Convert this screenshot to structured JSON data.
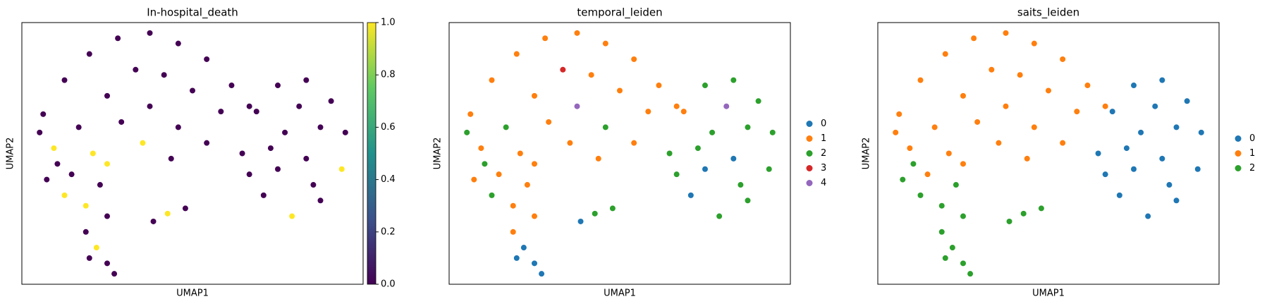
{
  "chart_data": [
    {
      "type": "scatter",
      "title": "In-hospital_death",
      "xlabel": "UMAP1",
      "ylabel": "UMAP2",
      "xlim": [
        0.6,
        10.2
      ],
      "ylim": [
        0,
        10
      ],
      "x": [
        1.2,
        1.8,
        2.5,
        3.3,
        4.2,
        5.0,
        5.8,
        6.5,
        7.0,
        1.5,
        2.2,
        3.0,
        3.8,
        4.6,
        5.4,
        6.2,
        2.6,
        3.4,
        4.2,
        5.0,
        5.8,
        3.0,
        4.0,
        1.1,
        2.0,
        4.8,
        1.3,
        1.8,
        2.4,
        3.0,
        1.6,
        2.8,
        2.4,
        2.7,
        3.0,
        3.2,
        2.5,
        4.3,
        4.7,
        5.2,
        6.8,
        7.2,
        7.8,
        8.6,
        9.3,
        9.7,
        9.6,
        9.0,
        8.2,
        7.4,
        7.0,
        8.0,
        8.6,
        7.8,
        9.0,
        8.4,
        7.6,
        8.8
      ],
      "y": [
        6.5,
        7.8,
        8.8,
        9.4,
        9.6,
        9.2,
        8.6,
        7.6,
        6.8,
        5.2,
        6.0,
        7.2,
        8.2,
        8.0,
        7.4,
        6.6,
        5.0,
        6.2,
        6.8,
        6.0,
        5.4,
        4.6,
        5.4,
        5.8,
        4.2,
        4.8,
        4.0,
        3.4,
        3.0,
        2.6,
        4.6,
        3.8,
        2.0,
        1.4,
        0.8,
        0.4,
        1.0,
        2.4,
        2.7,
        2.9,
        5.0,
        6.6,
        7.6,
        7.8,
        7.0,
        5.8,
        4.4,
        3.2,
        2.6,
        3.4,
        4.2,
        5.8,
        4.8,
        4.4,
        6.0,
        6.8,
        5.2,
        3.8
      ],
      "c": [
        0,
        0,
        0,
        0,
        0,
        0,
        0,
        0,
        0,
        1,
        0,
        0,
        0,
        0,
        0,
        0,
        1,
        0,
        0,
        0,
        0,
        1,
        1,
        0,
        0,
        0,
        0,
        1,
        1,
        0,
        0,
        0,
        0,
        1,
        0,
        0,
        0,
        0,
        1,
        0,
        0,
        0,
        0,
        0,
        0,
        0,
        1,
        0,
        1,
        0,
        0,
        0,
        0,
        0,
        0,
        0,
        0,
        0
      ],
      "colorbar": {
        "lim": [
          0,
          1
        ],
        "ticks": [
          {
            "value": 0,
            "label": "0.0"
          },
          {
            "value": 0.2,
            "label": "0.2"
          },
          {
            "value": 0.4,
            "label": "0.4"
          },
          {
            "value": 0.6,
            "label": "0.6"
          },
          {
            "value": 0.8,
            "label": "0.8"
          },
          {
            "value": 1,
            "label": "1.0"
          }
        ],
        "cmap": [
          "#440154",
          "#3b528b",
          "#21918c",
          "#5ec962",
          "#fde725"
        ]
      }
    },
    {
      "type": "scatter",
      "title": "temporal_leiden",
      "xlabel": "UMAP1",
      "ylabel": "UMAP2",
      "xlim": [
        0.6,
        10.2
      ],
      "ylim": [
        0,
        10
      ],
      "legend": "right",
      "series": [
        {
          "name": "0",
          "color": "#1f77b4",
          "x": [
            2.7,
            3.0,
            3.2,
            2.5,
            4.3,
            7.4,
            8.6,
            7.8
          ],
          "y": [
            1.4,
            0.8,
            0.4,
            1.0,
            2.4,
            3.4,
            4.8,
            4.4
          ]
        },
        {
          "name": "1",
          "color": "#ff7f0e",
          "x": [
            1.2,
            1.8,
            2.5,
            3.3,
            4.2,
            5.0,
            5.8,
            6.5,
            7.0,
            1.5,
            3.0,
            4.6,
            5.4,
            6.2,
            2.6,
            3.4,
            5.8,
            3.0,
            4.0,
            2.0,
            4.8,
            1.3,
            2.4,
            3.0,
            2.8,
            2.4,
            7.2
          ],
          "y": [
            6.5,
            7.8,
            8.8,
            9.4,
            9.6,
            9.2,
            8.6,
            7.6,
            6.8,
            5.2,
            7.2,
            8.0,
            7.4,
            6.6,
            5.0,
            6.2,
            5.4,
            4.6,
            5.4,
            4.2,
            4.8,
            4.0,
            3.0,
            2.6,
            3.8,
            2.0,
            6.6
          ]
        },
        {
          "name": "2",
          "color": "#2ca02c",
          "x": [
            2.2,
            5.0,
            1.1,
            1.8,
            1.6,
            4.7,
            5.2,
            6.8,
            7.8,
            8.6,
            9.3,
            9.7,
            9.6,
            9.0,
            8.2,
            7.0,
            8.0,
            9.0,
            7.6,
            8.8
          ],
          "y": [
            6.0,
            6.0,
            5.8,
            3.4,
            4.6,
            2.7,
            2.9,
            5.0,
            7.6,
            7.8,
            7.0,
            5.8,
            4.4,
            3.2,
            2.6,
            4.2,
            5.8,
            6.0,
            5.2,
            3.8
          ]
        },
        {
          "name": "3",
          "color": "#d62728",
          "x": [
            3.8
          ],
          "y": [
            8.2
          ]
        },
        {
          "name": "4",
          "color": "#9467bd",
          "x": [
            4.2,
            8.4
          ],
          "y": [
            6.8,
            6.8
          ]
        }
      ]
    },
    {
      "type": "scatter",
      "title": "saits_leiden",
      "xlabel": "UMAP1",
      "ylabel": "UMAP2",
      "xlim": [
        0.6,
        10.2
      ],
      "ylim": [
        0,
        10
      ],
      "legend": "right",
      "series": [
        {
          "name": "0",
          "color": "#1f77b4",
          "x": [
            6.8,
            7.2,
            7.8,
            8.6,
            9.3,
            9.7,
            9.6,
            9.0,
            8.2,
            7.4,
            7.0,
            8.0,
            8.6,
            7.8,
            9.0,
            8.4,
            7.6,
            8.8
          ],
          "y": [
            5.0,
            6.6,
            7.6,
            7.8,
            7.0,
            5.8,
            4.4,
            3.2,
            2.6,
            3.4,
            4.2,
            5.8,
            4.8,
            4.4,
            6.0,
            6.8,
            5.2,
            3.8
          ]
        },
        {
          "name": "1",
          "color": "#ff7f0e",
          "x": [
            1.2,
            1.8,
            2.5,
            3.3,
            4.2,
            5.0,
            5.8,
            6.5,
            7.0,
            1.5,
            2.2,
            3.0,
            3.8,
            4.6,
            5.4,
            6.2,
            2.6,
            3.4,
            4.2,
            5.0,
            5.8,
            3.0,
            4.0,
            1.1,
            2.0,
            4.8
          ],
          "y": [
            6.5,
            7.8,
            8.8,
            9.4,
            9.6,
            9.2,
            8.6,
            7.6,
            6.8,
            5.2,
            6.0,
            7.2,
            8.2,
            8.0,
            7.4,
            6.6,
            5.0,
            6.2,
            6.8,
            6.0,
            5.4,
            4.6,
            5.4,
            5.8,
            4.2,
            4.8
          ]
        },
        {
          "name": "2",
          "color": "#2ca02c",
          "x": [
            1.3,
            1.8,
            2.4,
            3.0,
            1.6,
            2.8,
            2.4,
            2.7,
            3.0,
            3.2,
            2.5,
            4.3,
            4.7,
            5.2
          ],
          "y": [
            4.0,
            3.4,
            3.0,
            2.6,
            4.6,
            3.8,
            2.0,
            1.4,
            0.8,
            0.4,
            1.0,
            2.4,
            2.7,
            2.9
          ]
        }
      ]
    }
  ]
}
